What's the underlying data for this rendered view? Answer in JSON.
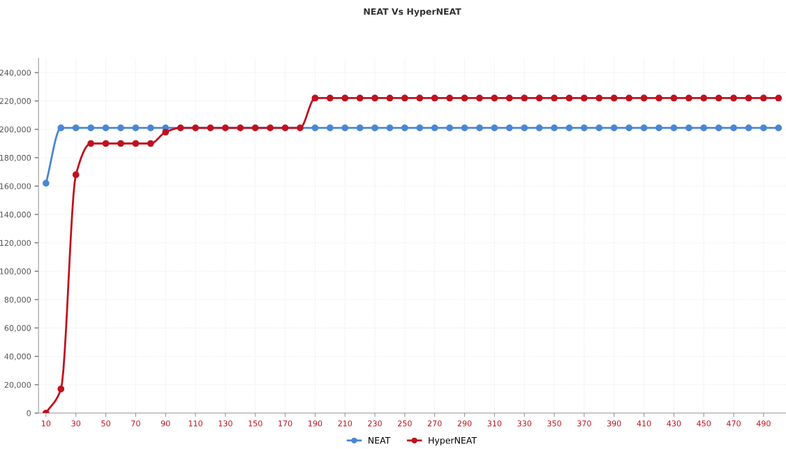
{
  "chart_data": {
    "type": "line",
    "title": "NEAT Vs HyperNEAT",
    "x": [
      10,
      20,
      30,
      40,
      50,
      60,
      70,
      80,
      90,
      100,
      110,
      120,
      130,
      140,
      150,
      160,
      170,
      180,
      190,
      200,
      210,
      220,
      230,
      240,
      250,
      260,
      270,
      280,
      290,
      300,
      310,
      320,
      330,
      340,
      350,
      360,
      370,
      380,
      390,
      400,
      410,
      420,
      430,
      440,
      450,
      460,
      470,
      480,
      490,
      500
    ],
    "series": [
      {
        "name": "NEAT",
        "color": "#4a86d4",
        "values": [
          162000,
          201000,
          201000,
          201000,
          201000,
          201000,
          201000,
          201000,
          201000,
          null,
          null,
          null,
          null,
          null,
          null,
          null,
          null,
          null,
          201000,
          201000,
          201000,
          201000,
          201000,
          201000,
          201000,
          201000,
          201000,
          201000,
          201000,
          201000,
          201000,
          201000,
          201000,
          201000,
          201000,
          201000,
          201000,
          201000,
          201000,
          201000,
          201000,
          201000,
          201000,
          201000,
          201000,
          201000,
          201000,
          201000,
          201000,
          201000
        ]
      },
      {
        "name": "HyperNEAT",
        "color": "#c0111f",
        "values": [
          0,
          17000,
          168000,
          190000,
          190000,
          190000,
          190000,
          190000,
          198000,
          201000,
          201000,
          201000,
          201000,
          201000,
          201000,
          201000,
          201000,
          201000,
          222000,
          222000,
          222000,
          222000,
          222000,
          222000,
          222000,
          222000,
          222000,
          222000,
          222000,
          222000,
          222000,
          222000,
          222000,
          222000,
          222000,
          222000,
          222000,
          222000,
          222000,
          222000,
          222000,
          222000,
          222000,
          222000,
          222000,
          222000,
          222000,
          222000,
          222000,
          222000
        ]
      }
    ],
    "xlim": [
      5,
      505
    ],
    "xticks": [
      10,
      30,
      50,
      70,
      90,
      110,
      130,
      150,
      170,
      190,
      210,
      230,
      250,
      270,
      290,
      310,
      330,
      350,
      370,
      390,
      410,
      430,
      450,
      470,
      490
    ],
    "ylim": [
      0,
      250000
    ],
    "yticks": [
      {
        "value": 0,
        "label": "0"
      },
      {
        "value": 20000,
        "label": "20,000"
      },
      {
        "value": 40000,
        "label": "40,000"
      },
      {
        "value": 60000,
        "label": "60,000"
      },
      {
        "value": 80000,
        "label": "80,000"
      },
      {
        "value": 100000,
        "label": "100,000"
      },
      {
        "value": 120000,
        "label": "120,000"
      },
      {
        "value": 140000,
        "label": "140,000"
      },
      {
        "value": 160000,
        "label": "160,000"
      },
      {
        "value": 180000,
        "label": "180,000"
      },
      {
        "value": 200000,
        "label": "200,000"
      },
      {
        "value": 220000,
        "label": "220,000"
      },
      {
        "value": 240000,
        "label": "240,000"
      }
    ],
    "grid": true,
    "legend": "bottom",
    "marker": "circle",
    "line_style": "solid"
  }
}
